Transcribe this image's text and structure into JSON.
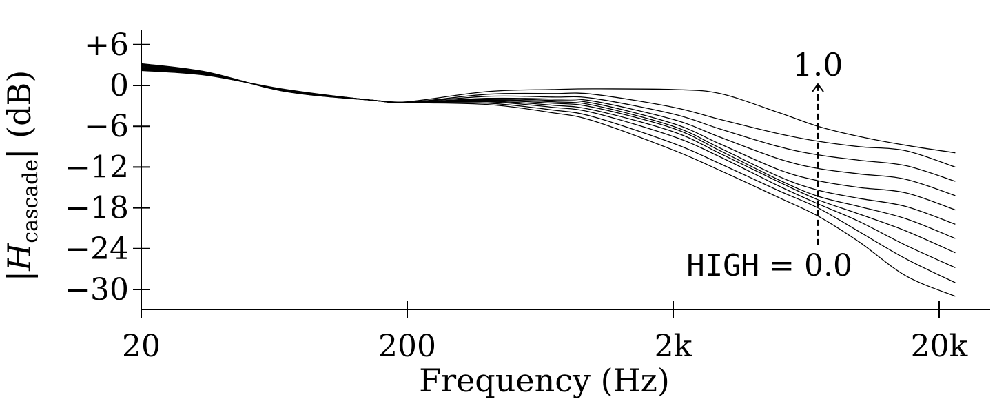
{
  "chart_data": {
    "type": "line",
    "xlabel": "Frequency (Hz)",
    "ylabel": "|H",
    "ylabel_sub": "cascade",
    "ylabel_tail": "| (dB)",
    "xscale": "log",
    "xlim": [
      20,
      27000
    ],
    "ylim": [
      -33,
      8
    ],
    "xticks": [
      20,
      200,
      2000,
      20000
    ],
    "xtick_labels": [
      "20",
      "200",
      "2k",
      "20k"
    ],
    "yticks": [
      6,
      0,
      -6,
      -12,
      -18,
      -24,
      -30
    ],
    "ytick_labels": [
      "+6",
      "0",
      "−6",
      "−12",
      "−18",
      "−24",
      "−30"
    ],
    "grid": false,
    "line_color": "#000000",
    "annotations": {
      "top": "1.0",
      "bottom_prefix": "HIGH",
      "bottom_suffix": " = 0.0",
      "arrow_x": 7000,
      "arrow_y_from": -23.5,
      "arrow_y_to": 0.2
    },
    "x": [
      20,
      35,
      70,
      150,
      200,
      400,
      700,
      1000,
      2000,
      3000,
      5000,
      7000,
      10000,
      15000,
      23000
    ],
    "series": [
      {
        "values": [
          3.2,
          2.0,
          -0.9,
          -2.2,
          -2.5,
          -2.8,
          -4.0,
          -5.2,
          -9.5,
          -12.5,
          -16.5,
          -19.2,
          -23.0,
          -28.0,
          -31.0
        ]
      },
      {
        "values": [
          3.1,
          1.95,
          -0.9,
          -2.2,
          -2.5,
          -2.6,
          -3.6,
          -4.6,
          -8.5,
          -11.5,
          -15.5,
          -18.0,
          -21.5,
          -25.5,
          -29.0
        ]
      },
      {
        "values": [
          3.0,
          1.9,
          -0.85,
          -2.2,
          -2.5,
          -2.4,
          -3.2,
          -4.0,
          -7.5,
          -10.5,
          -14.8,
          -17.4,
          -20.0,
          -23.5,
          -26.8
        ]
      },
      {
        "values": [
          2.9,
          1.85,
          -0.8,
          -2.2,
          -2.5,
          -2.3,
          -2.9,
          -3.6,
          -6.8,
          -10.0,
          -14.2,
          -16.8,
          -18.9,
          -21.4,
          -24.6
        ]
      },
      {
        "values": [
          2.8,
          1.8,
          -0.8,
          -2.2,
          -2.5,
          -2.2,
          -2.6,
          -3.2,
          -6.3,
          -9.6,
          -13.9,
          -16.3,
          -17.8,
          -19.6,
          -22.5
        ]
      },
      {
        "values": [
          2.7,
          1.75,
          -0.75,
          -2.2,
          -2.5,
          -2.1,
          -2.4,
          -2.9,
          -6.0,
          -9.2,
          -13.4,
          -15.4,
          -16.6,
          -17.8,
          -20.4
        ]
      },
      {
        "values": [
          2.6,
          1.7,
          -0.75,
          -2.2,
          -2.5,
          -2.0,
          -2.2,
          -2.6,
          -5.6,
          -8.6,
          -12.4,
          -14.0,
          -15.0,
          -15.8,
          -18.3
        ]
      },
      {
        "values": [
          2.5,
          1.65,
          -0.7,
          -2.2,
          -2.5,
          -1.9,
          -2.0,
          -2.3,
          -5.0,
          -7.6,
          -10.8,
          -12.2,
          -13.0,
          -13.8,
          -16.2
        ]
      },
      {
        "values": [
          2.4,
          1.6,
          -0.7,
          -2.2,
          -2.5,
          -1.6,
          -1.7,
          -1.9,
          -4.2,
          -6.4,
          -9.0,
          -10.2,
          -11.0,
          -11.8,
          -14.1
        ]
      },
      {
        "values": [
          2.3,
          1.55,
          -0.65,
          -2.2,
          -2.5,
          -1.3,
          -1.2,
          -1.3,
          -3.2,
          -5.0,
          -7.1,
          -8.2,
          -9.0,
          -9.6,
          -12.0
        ]
      },
      {
        "values": [
          2.2,
          1.5,
          -0.6,
          -2.2,
          -2.4,
          -0.9,
          -0.6,
          -0.5,
          -0.6,
          -1.2,
          -4.0,
          -6.0,
          -7.5,
          -8.8,
          -9.9
        ]
      }
    ]
  }
}
